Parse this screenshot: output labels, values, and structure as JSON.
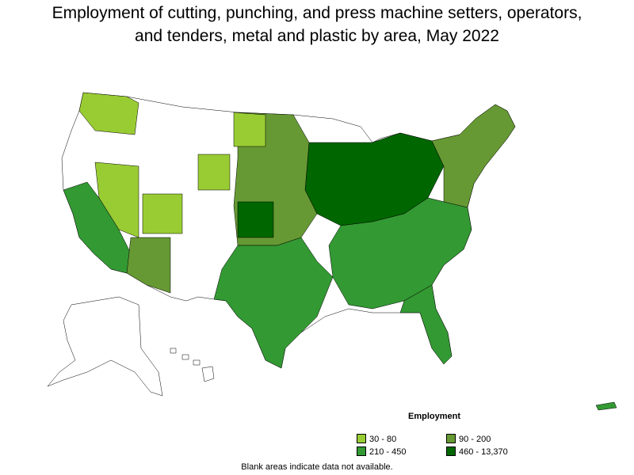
{
  "title_line1": "Employment of cutting, punching, and press machine setters, operators,",
  "title_line2": "and tenders, metal and plastic by area, May 2022",
  "legend": {
    "title": "Employment",
    "items": [
      {
        "label": "30 - 80",
        "color": "#99cc33"
      },
      {
        "label": "90 - 200",
        "color": "#669933"
      },
      {
        "label": "210 - 450",
        "color": "#339933"
      },
      {
        "label": "460 - 13,370",
        "color": "#006600"
      }
    ]
  },
  "note": "Blank areas indicate data not available.",
  "colors": {
    "blank": "#ffffff",
    "border": "#000000"
  }
}
